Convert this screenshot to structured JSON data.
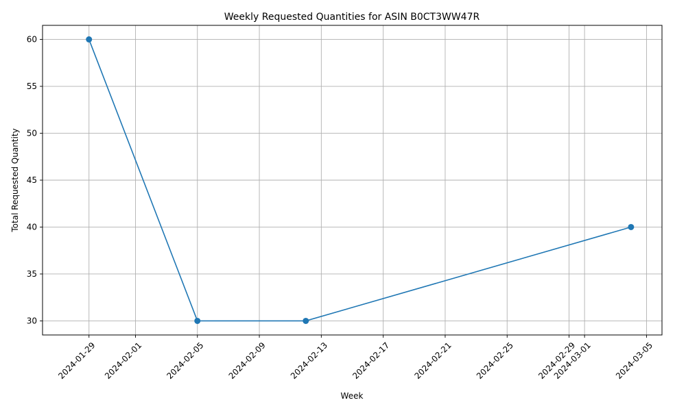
{
  "chart_data": {
    "type": "line",
    "title": "Weekly Requested Quantities for ASIN B0CT3WW47R",
    "xlabel": "Week",
    "ylabel": "Total Requested Quantity",
    "x": [
      "2024-01-29",
      "2024-02-05",
      "2024-02-12",
      "2024-03-04"
    ],
    "series": [
      {
        "values": [
          60,
          30,
          30,
          40
        ],
        "color": "#1f77b4",
        "marker": "circle"
      }
    ],
    "x_ticks": [
      "2024-01-29",
      "2024-02-01",
      "2024-02-05",
      "2024-02-09",
      "2024-02-13",
      "2024-02-17",
      "2024-02-21",
      "2024-02-25",
      "2024-02-29",
      "2024-03-01",
      "2024-03-05"
    ],
    "y_ticks": [
      30,
      35,
      40,
      45,
      50,
      55,
      60
    ],
    "xlim": [
      "2024-01-26",
      "2024-03-06"
    ],
    "ylim": [
      28.5,
      61.5
    ],
    "grid": true,
    "x_tick_rotation": 45
  }
}
